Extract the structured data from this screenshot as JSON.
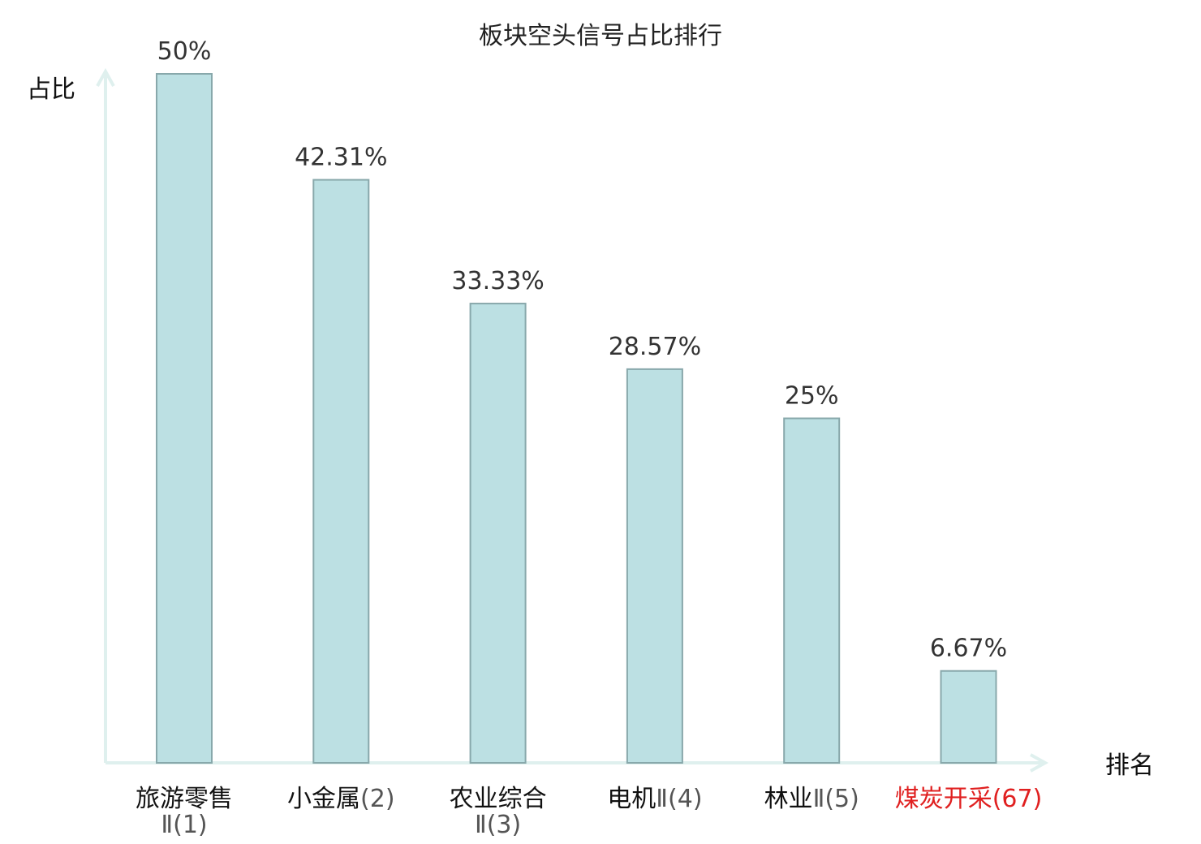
{
  "chart_data": {
    "type": "bar",
    "title": "板块空头信号占比排行",
    "ylabel": "占比",
    "xlabel": "排名",
    "ylim": [
      0,
      50
    ],
    "grid": false,
    "categories": [
      {
        "name": "旅游零售",
        "suffix": "Ⅱ(1)",
        "highlight": false
      },
      {
        "name": "小金属",
        "suffix": "(2)",
        "highlight": false
      },
      {
        "name": "农业综合",
        "suffix": "Ⅱ(3)",
        "highlight": false
      },
      {
        "name": "电机",
        "suffix": "Ⅱ(4)",
        "highlight": false
      },
      {
        "name": "林业",
        "suffix": "Ⅱ(5)",
        "highlight": false
      },
      {
        "name": "煤炭开采",
        "suffix": "(67)",
        "highlight": true
      }
    ],
    "values": [
      50,
      42.31,
      33.33,
      28.57,
      25,
      6.67
    ],
    "value_labels": [
      "50%",
      "42.31%",
      "33.33%",
      "28.57%",
      "25%",
      "6.67%"
    ]
  },
  "colors": {
    "bar_fill": "#bce0e3",
    "bar_stroke": "#88a8ab",
    "axis": "#dff0ee",
    "highlight": "#e02020"
  }
}
